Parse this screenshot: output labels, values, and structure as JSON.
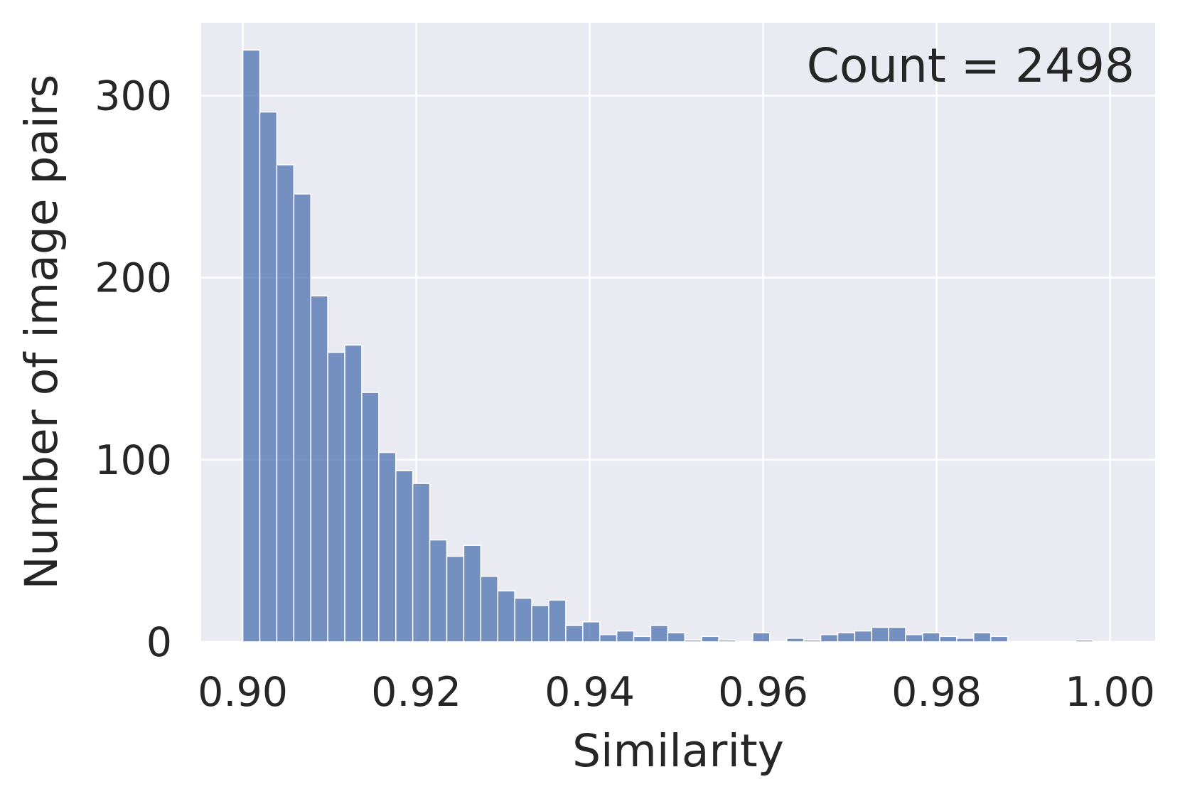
{
  "chart_data": {
    "type": "bar",
    "title": "",
    "xlabel": "Similarity",
    "ylabel": "Number of image pairs",
    "annotation": "Count = 2498",
    "xlim": [
      0.8952,
      1.0052
    ],
    "ylim": [
      0,
      340
    ],
    "xticks": [
      0.9,
      0.92,
      0.94,
      0.96,
      0.98,
      1.0
    ],
    "xtick_labels": [
      "0.90",
      "0.92",
      "0.94",
      "0.96",
      "0.98",
      "1.00"
    ],
    "yticks": [
      0,
      100,
      200,
      300
    ],
    "ytick_labels": [
      "0",
      "100",
      "200",
      "300"
    ],
    "grid": true,
    "colors": {
      "background": "#eaeaf2",
      "bar": "#4c72b0",
      "grid": "#ffffff",
      "text": "#262626"
    },
    "bin_start": 0.9,
    "bin_width": 0.00196,
    "values": [
      325,
      291,
      262,
      246,
      190,
      159,
      163,
      137,
      104,
      94,
      87,
      56,
      47,
      53,
      36,
      28,
      24,
      20,
      23,
      9,
      11,
      4,
      6,
      3,
      9,
      5,
      1,
      3,
      1,
      0,
      5,
      0,
      2,
      1,
      4,
      5,
      6,
      8,
      8,
      4,
      5,
      3,
      2,
      5,
      3,
      0,
      0,
      0,
      0,
      1
    ]
  }
}
